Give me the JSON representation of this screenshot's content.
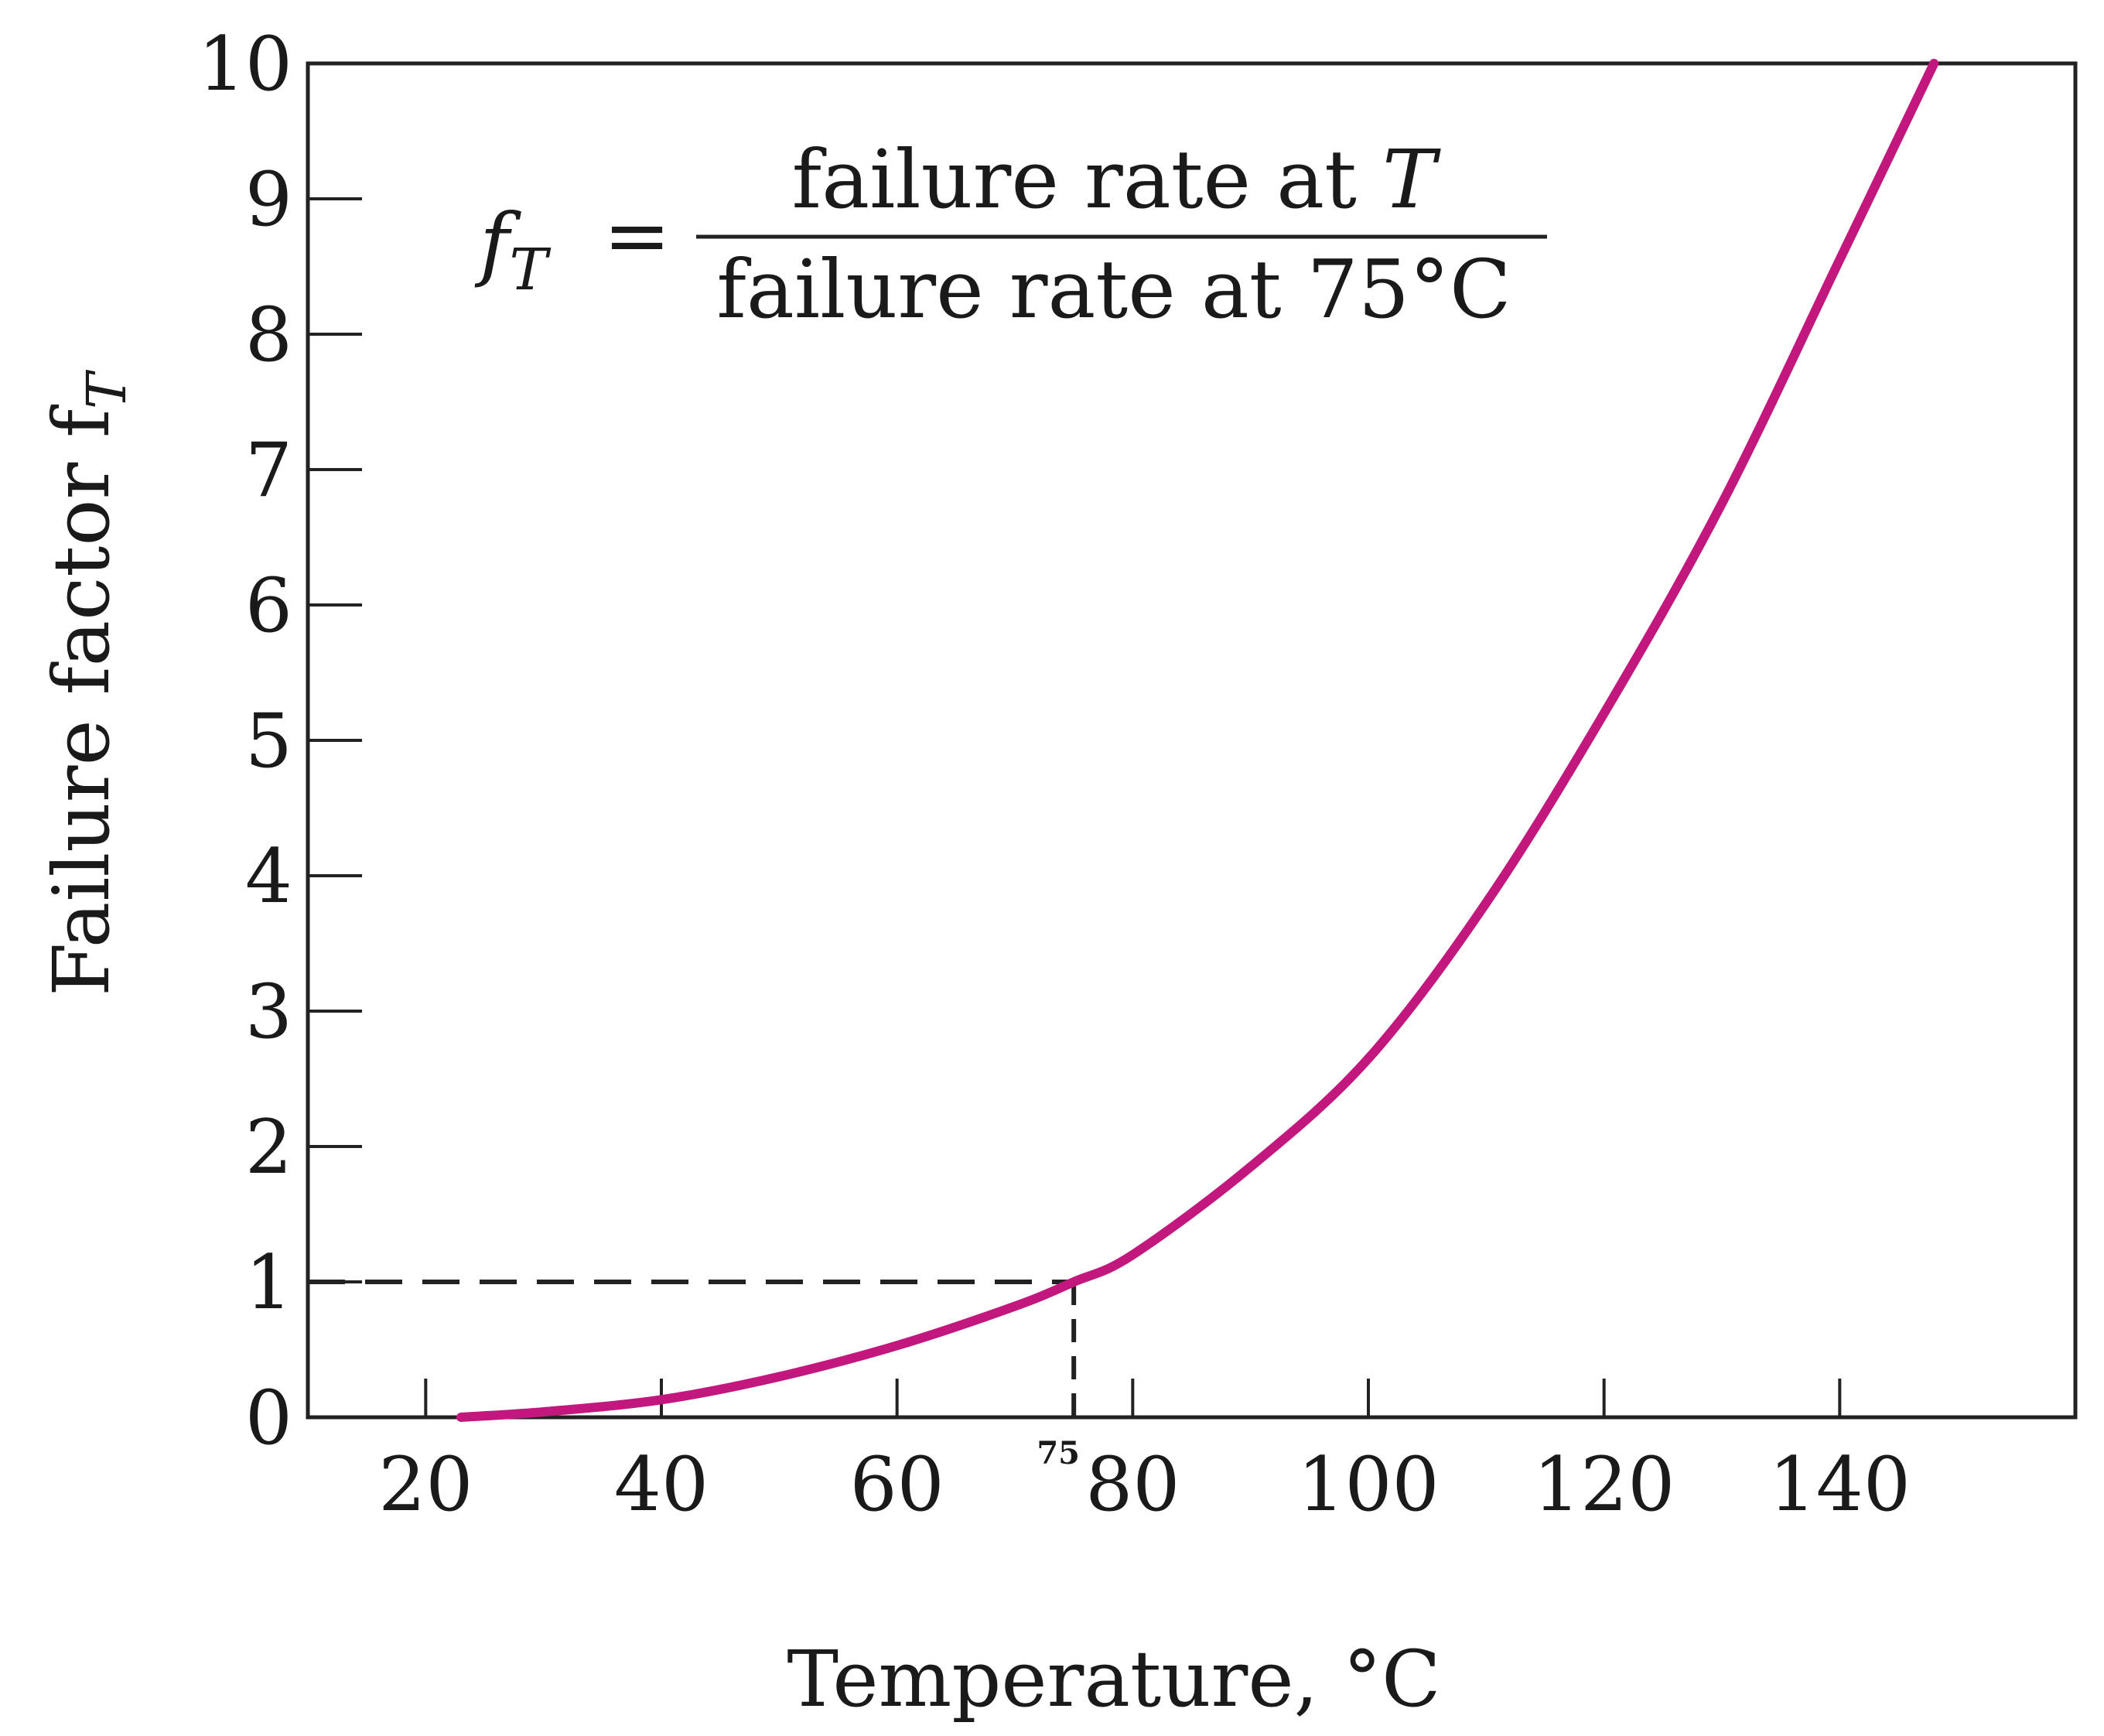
{
  "chart_data": {
    "type": "line",
    "title": "",
    "xlabel": "Temperature, °C",
    "ylabel": "Failure factor f",
    "ylabel_subscript": "T",
    "xlim": [
      10,
      160
    ],
    "ylim": [
      0,
      10
    ],
    "x_ticks": [
      20,
      40,
      60,
      80,
      100,
      120,
      140
    ],
    "y_ticks": [
      0,
      1,
      2,
      3,
      4,
      5,
      6,
      7,
      8,
      9,
      10
    ],
    "grid": false,
    "legend": "none",
    "series": [
      {
        "color": "#c2187d",
        "x": [
          23,
          30,
          40,
          50,
          60,
          70,
          75,
          80,
          90,
          100,
          110,
          120,
          130,
          140,
          148
        ],
        "y": [
          0.0,
          0.04,
          0.13,
          0.3,
          0.53,
          0.82,
          1.0,
          1.2,
          1.85,
          2.65,
          3.8,
          5.2,
          6.75,
          8.55,
          10.0
        ]
      }
    ],
    "reference": {
      "x": 75,
      "y": 1,
      "x_label": "75",
      "style": "dashed"
    },
    "annotation": {
      "lhs_symbol": "f",
      "lhs_subscript": "T",
      "equals": "=",
      "numerator": "failure rate at ",
      "numerator_var": "T",
      "denominator": "failure rate at 75°C"
    }
  }
}
